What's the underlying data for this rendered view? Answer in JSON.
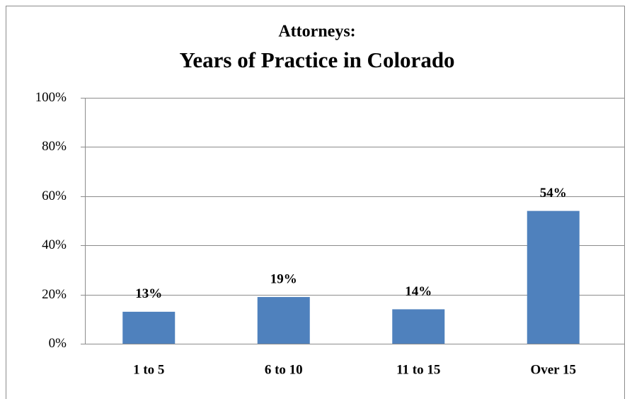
{
  "chart_data": {
    "type": "bar",
    "title": [
      "Attorneys:",
      "Years of Practice in Colorado"
    ],
    "categories": [
      "1 to 5",
      "6 to 10",
      "11 to 15",
      "Over 15"
    ],
    "values": [
      13,
      19,
      14,
      54
    ],
    "value_labels": [
      "13%",
      "19%",
      "14%",
      "54%"
    ],
    "color": "#4f81bd",
    "ylim": [
      0,
      100
    ],
    "yticks": [
      {
        "value": 0,
        "label": "0%"
      },
      {
        "value": 20,
        "label": "20%"
      },
      {
        "value": 40,
        "label": "40%"
      },
      {
        "value": 60,
        "label": "60%"
      },
      {
        "value": 80,
        "label": "80%"
      },
      {
        "value": 100,
        "label": "100%"
      }
    ],
    "grid": true
  }
}
